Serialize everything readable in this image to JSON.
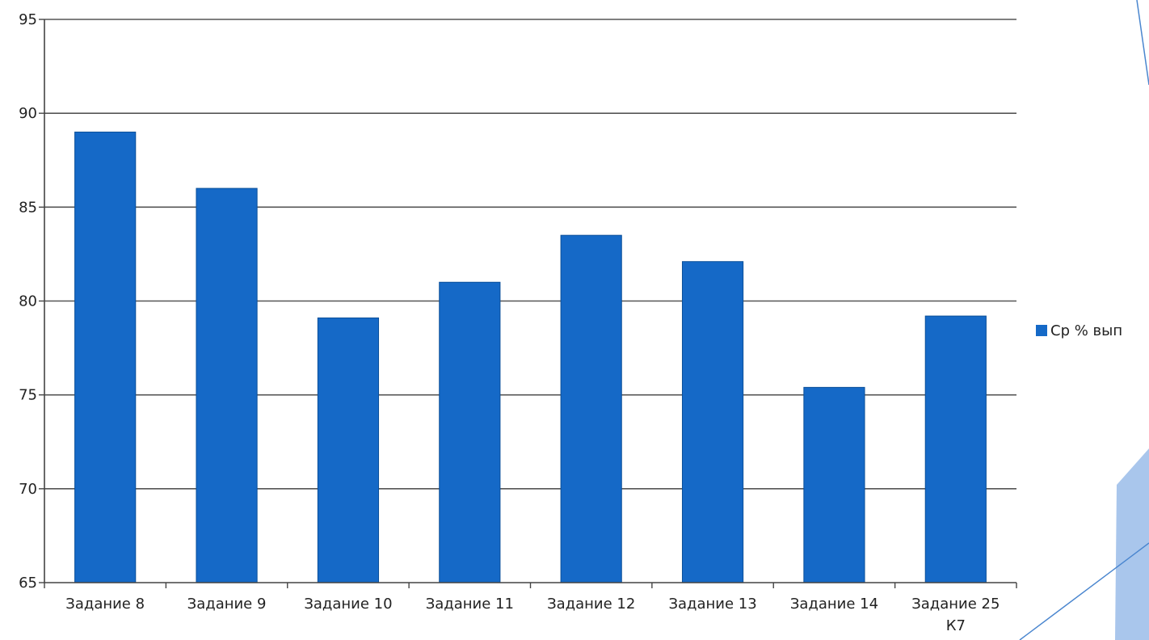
{
  "chart_data": {
    "type": "bar",
    "title": "",
    "xlabel": "",
    "ylabel": "",
    "categories": [
      [
        "Задание 8"
      ],
      [
        "Задание 9"
      ],
      [
        "Задание 10"
      ],
      [
        "Задание 11"
      ],
      [
        "Задание 12"
      ],
      [
        "Задание 13"
      ],
      [
        "Задание 14"
      ],
      [
        "Задание 25",
        "К7"
      ]
    ],
    "series": [
      {
        "name": "Ср % вып",
        "color": "#1569C7",
        "values": [
          89,
          86,
          79.1,
          81,
          83.5,
          82.1,
          75.4,
          79.2
        ]
      }
    ],
    "ylim": [
      65,
      95
    ],
    "yticks": [
      65,
      70,
      75,
      80,
      85,
      90,
      95
    ],
    "grid": true,
    "legend_position": "right"
  }
}
